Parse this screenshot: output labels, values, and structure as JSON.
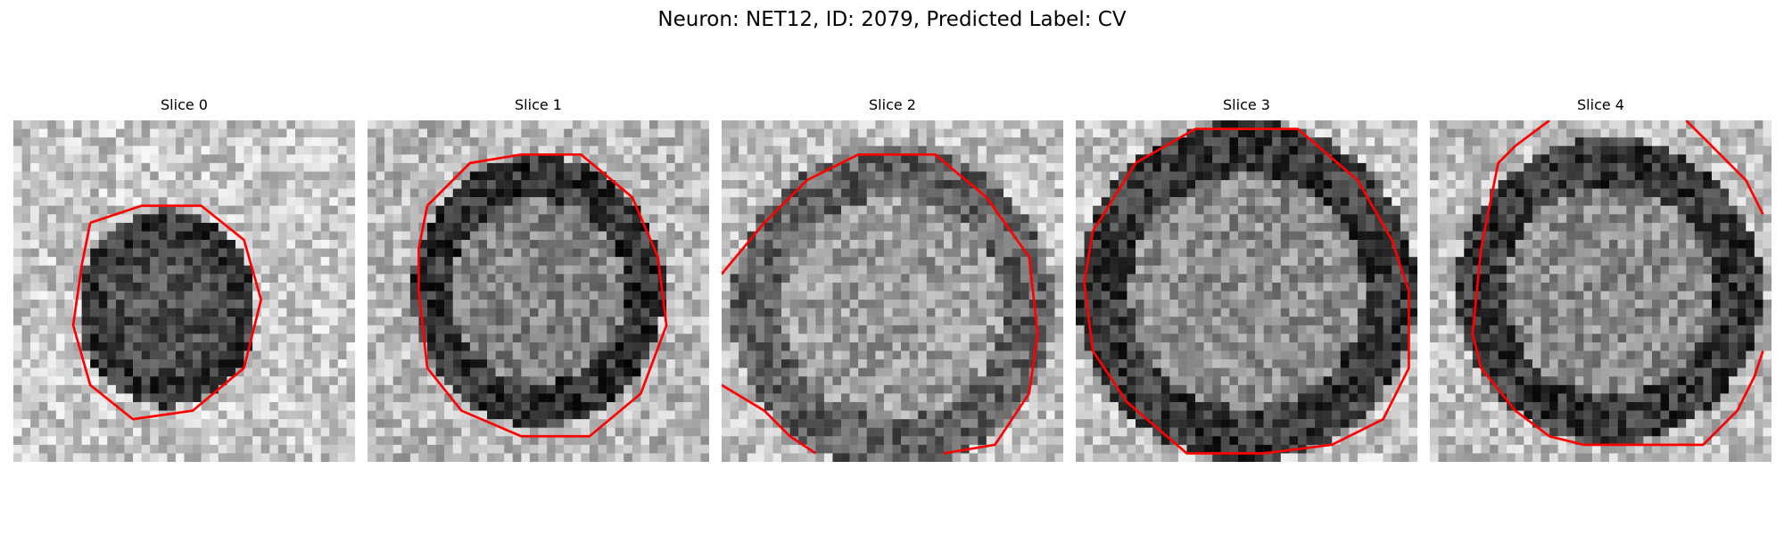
{
  "figure": {
    "title": "Neuron: NET12, ID: 2079, Predicted Label: CV"
  },
  "slices": [
    {
      "label": "Slice 0"
    },
    {
      "label": "Slice 1"
    },
    {
      "label": "Slice 2"
    },
    {
      "label": "Slice 3"
    },
    {
      "label": "Slice 4"
    }
  ],
  "colors": {
    "contour": "#ff0000",
    "background": "#ffffff"
  }
}
